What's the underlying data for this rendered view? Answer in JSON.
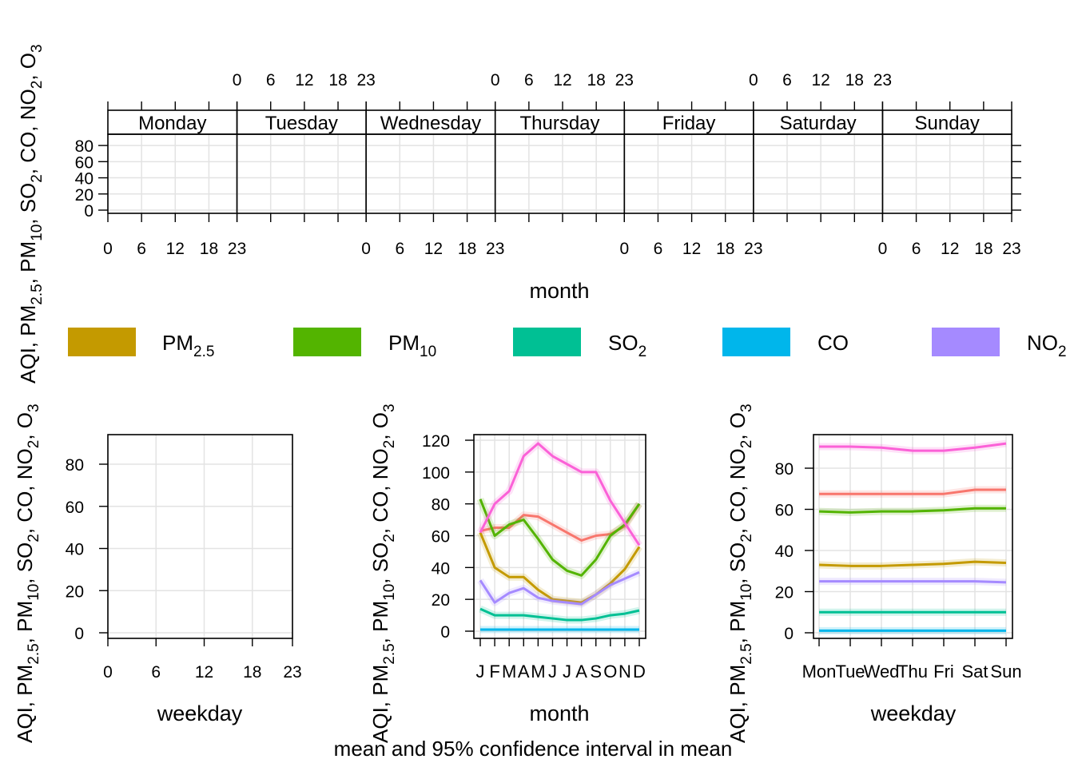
{
  "title_bottom": "mean and 95% confidence interval in mean",
  "ylabel": [
    "AQI, PM",
    "2.5",
    ", PM",
    "10",
    ", SO",
    "2",
    ", CO, NO",
    "2",
    ", O",
    "3"
  ],
  "legend": [
    {
      "base": "PM",
      "sub": "2.5",
      "color": "#C49A00"
    },
    {
      "base": "PM",
      "sub": "10",
      "color": "#53B400"
    },
    {
      "base": "SO",
      "sub": "2",
      "color": "#00C094"
    },
    {
      "base": "CO",
      "sub": "",
      "color": "#00B6EB"
    },
    {
      "base": "NO",
      "sub": "2",
      "color": "#A58AFF"
    }
  ],
  "chart_data": [
    {
      "type": "line",
      "panel": "hour-by-weekday",
      "xlabel": "month",
      "strips": [
        "Monday",
        "Tuesday",
        "Wednesday",
        "Thursday",
        "Friday",
        "Saturday",
        "Sunday"
      ],
      "x_ticks": [
        "0",
        "6",
        "12",
        "18",
        "23"
      ],
      "y_ticks": [
        "0",
        "20",
        "40",
        "60",
        "80"
      ],
      "xlim": [
        0,
        23
      ],
      "ylim": [
        0,
        90
      ],
      "series": []
    },
    {
      "type": "line",
      "panel": "hour",
      "xlabel": "weekday",
      "x_ticks": [
        "0",
        "6",
        "12",
        "18",
        "23"
      ],
      "y_ticks": [
        "0",
        "20",
        "40",
        "60",
        "80"
      ],
      "xlim": [
        0,
        23
      ],
      "ylim": [
        0,
        90
      ],
      "series": []
    },
    {
      "type": "line",
      "panel": "month",
      "xlabel": "month",
      "categories": [
        "J",
        "F",
        "M",
        "A",
        "M",
        "J",
        "J",
        "A",
        "S",
        "O",
        "N",
        "D"
      ],
      "y_ticks": [
        "0",
        "20",
        "40",
        "60",
        "80",
        "100",
        "120"
      ],
      "ylim": [
        -4,
        124
      ],
      "series": [
        {
          "color": "#F8766D",
          "values": [
            63,
            65,
            65,
            73,
            72,
            67,
            62,
            57,
            60,
            61,
            66,
            80
          ]
        },
        {
          "color": "#C49A00",
          "values": [
            62,
            40,
            34,
            34,
            26,
            20,
            19,
            18,
            23,
            30,
            39,
            53
          ]
        },
        {
          "color": "#53B400",
          "values": [
            83,
            60,
            67,
            70,
            58,
            45,
            38,
            35,
            45,
            60,
            67,
            80
          ]
        },
        {
          "color": "#00C094",
          "values": [
            14,
            10,
            10,
            10,
            9,
            8,
            7,
            7,
            8,
            10,
            11,
            13
          ]
        },
        {
          "color": "#00B6EB",
          "values": [
            1,
            1,
            1,
            1,
            1,
            1,
            1,
            1,
            1,
            1,
            1,
            1
          ]
        },
        {
          "color": "#A58AFF",
          "values": [
            32,
            18,
            24,
            27,
            21,
            19,
            18,
            17,
            23,
            29,
            33,
            37
          ]
        },
        {
          "color": "#FB61D7",
          "values": [
            62,
            80,
            88,
            110,
            118,
            110,
            105,
            100,
            100,
            82,
            68,
            54
          ]
        }
      ]
    },
    {
      "type": "line",
      "panel": "weekday",
      "xlabel": "weekday",
      "categories": [
        "Mon",
        "Tue",
        "Wed",
        "Thu",
        "Fri",
        "Sat",
        "Sun"
      ],
      "y_ticks": [
        "0",
        "20",
        "40",
        "60",
        "80"
      ],
      "ylim": [
        -3,
        94
      ],
      "series": [
        {
          "color": "#FB61D7",
          "values": [
            90.5,
            90.5,
            90,
            88.5,
            88.5,
            90,
            92
          ]
        },
        {
          "color": "#F8766D",
          "values": [
            67.5,
            67.5,
            67.5,
            67.5,
            67.5,
            69.5,
            69.5
          ]
        },
        {
          "color": "#53B400",
          "values": [
            59,
            58.5,
            59,
            59,
            59.5,
            60.5,
            60.5
          ]
        },
        {
          "color": "#C49A00",
          "values": [
            33,
            32.5,
            32.5,
            33,
            33.5,
            34.5,
            34
          ]
        },
        {
          "color": "#A58AFF",
          "values": [
            25,
            25,
            25,
            25,
            25,
            25,
            24.5
          ]
        },
        {
          "color": "#00C094",
          "values": [
            10,
            10,
            10,
            10,
            10,
            10,
            10
          ]
        },
        {
          "color": "#00B6EB",
          "values": [
            1,
            1,
            1,
            1,
            1,
            1,
            1
          ]
        }
      ]
    }
  ]
}
